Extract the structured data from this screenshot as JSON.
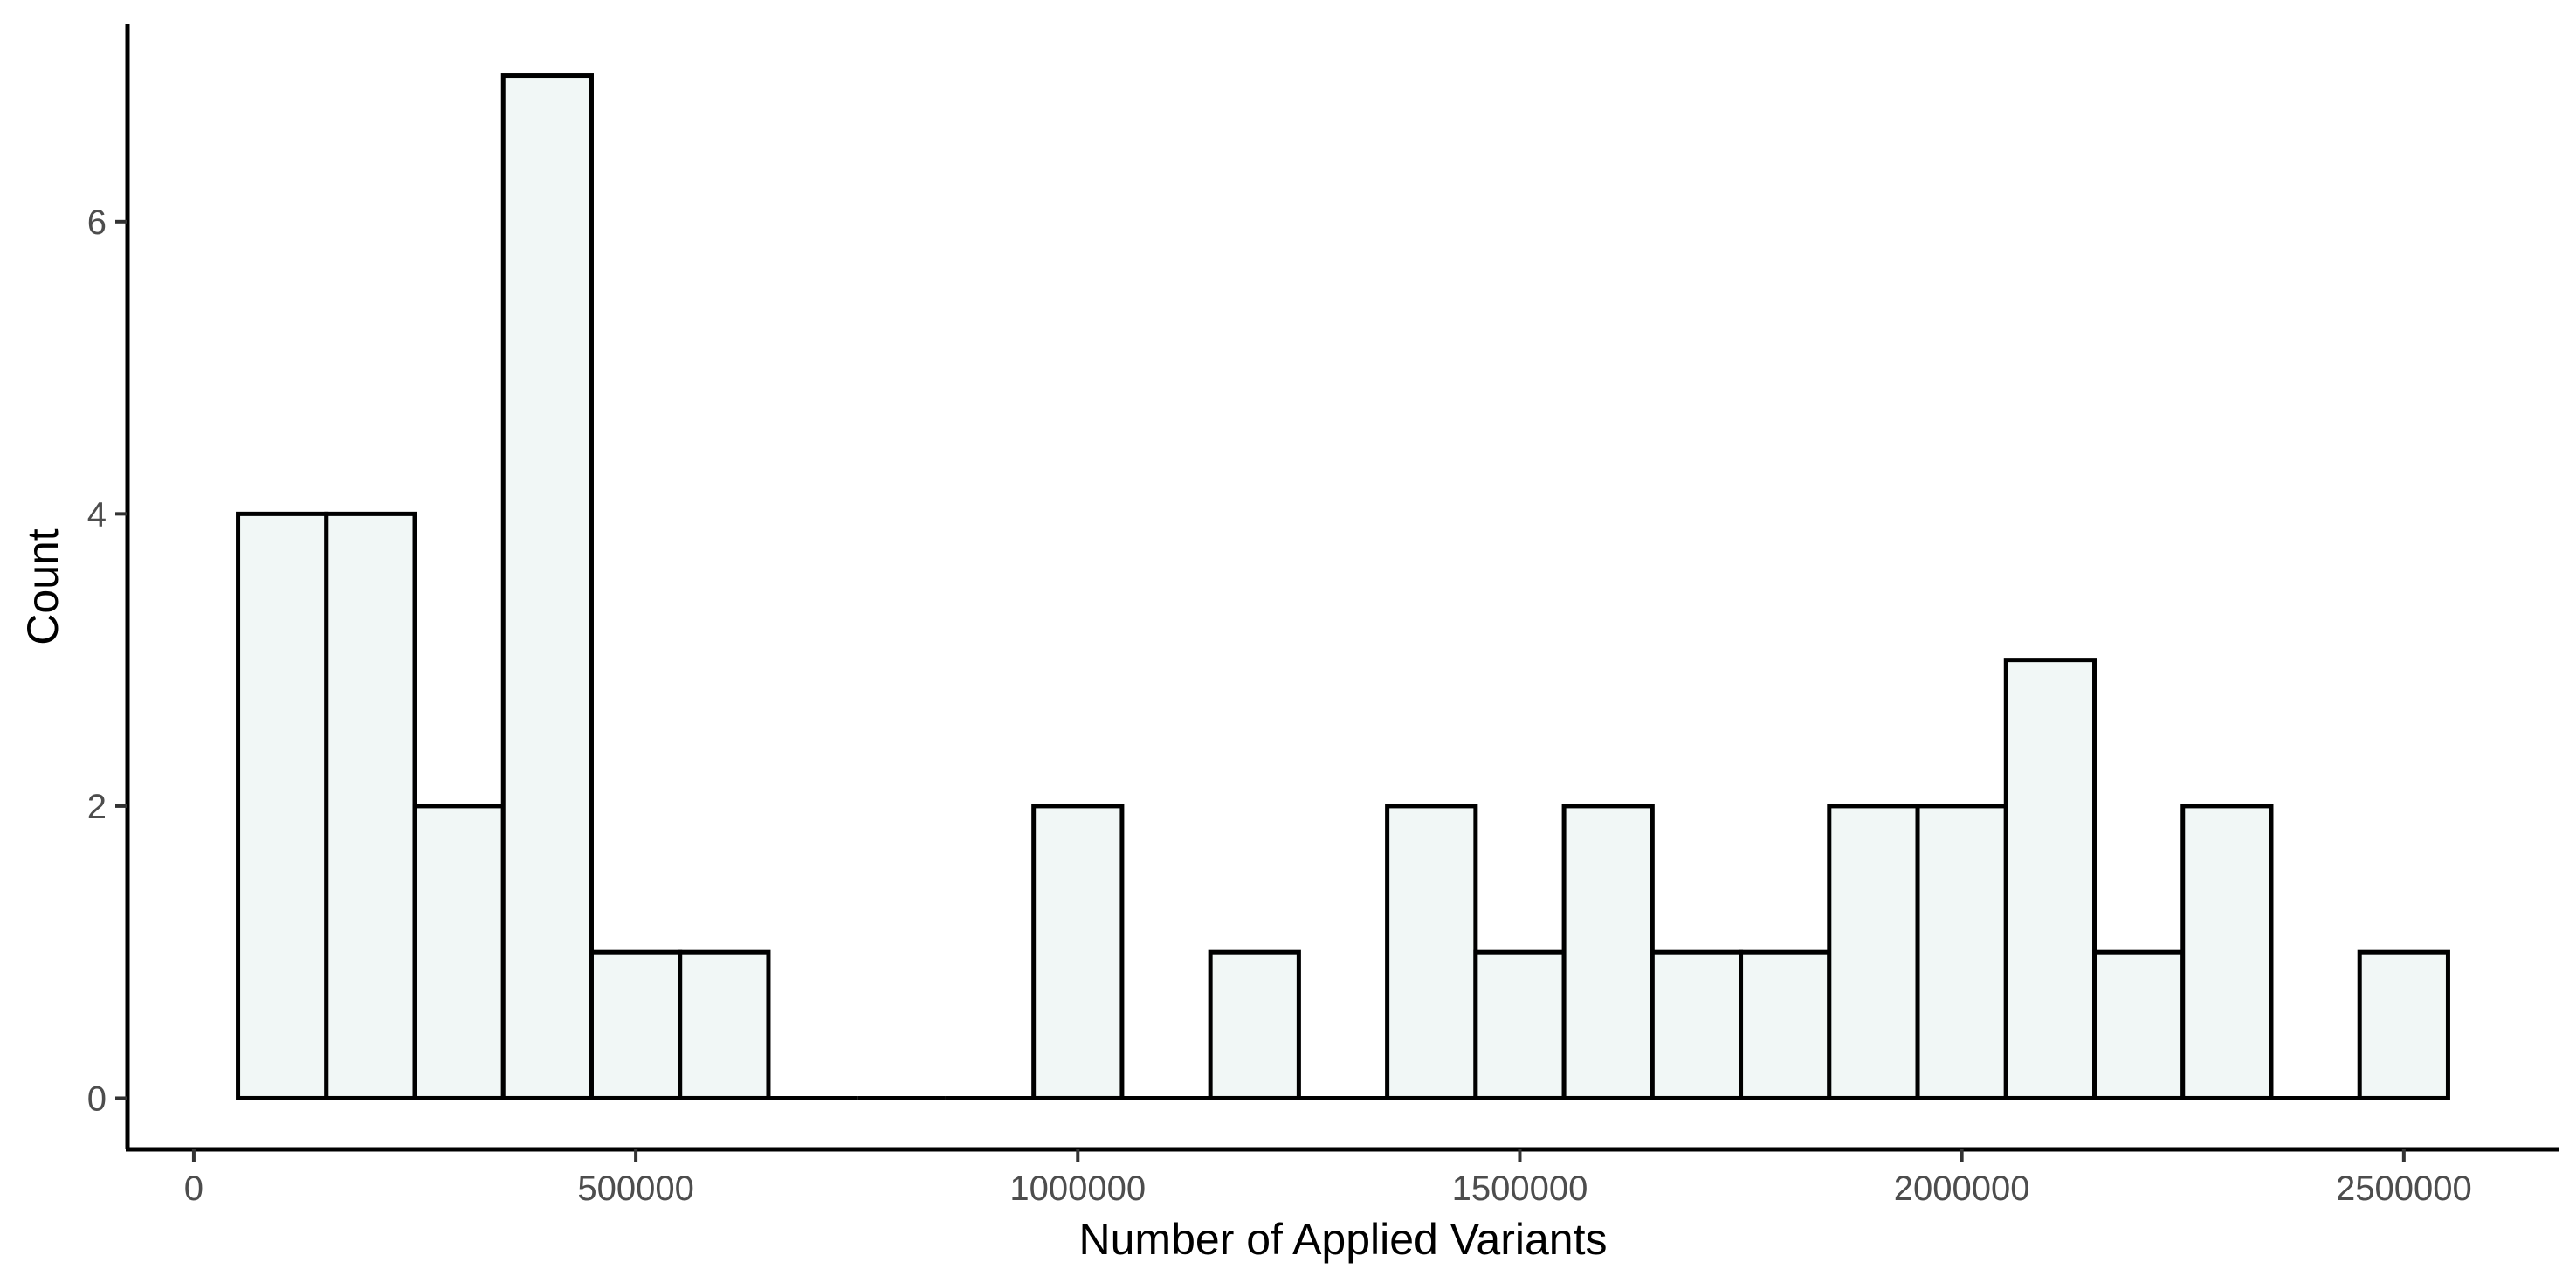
{
  "chart_data": {
    "type": "histogram",
    "title": "",
    "xlabel": "Number of Applied Variants",
    "ylabel": "Count",
    "xlim": [
      -75000,
      2675000
    ],
    "ylim": [
      -0.35,
      7.35
    ],
    "x_ticks": [
      0,
      500000,
      1000000,
      1500000,
      2000000,
      2500000
    ],
    "x_tick_labels": [
      "0",
      "500000",
      "1000000",
      "1500000",
      "2000000",
      "2500000"
    ],
    "y_ticks": [
      0,
      2,
      4,
      6
    ],
    "y_tick_labels": [
      "0",
      "2",
      "4",
      "6"
    ],
    "bin_width": 100000,
    "bins": [
      {
        "x_min": 50000,
        "x_max": 150000,
        "count": 4
      },
      {
        "x_min": 150000,
        "x_max": 250000,
        "count": 4
      },
      {
        "x_min": 250000,
        "x_max": 350000,
        "count": 2
      },
      {
        "x_min": 350000,
        "x_max": 450000,
        "count": 7
      },
      {
        "x_min": 450000,
        "x_max": 550000,
        "count": 1
      },
      {
        "x_min": 550000,
        "x_max": 650000,
        "count": 1
      },
      {
        "x_min": 650000,
        "x_max": 750000,
        "count": 0
      },
      {
        "x_min": 750000,
        "x_max": 850000,
        "count": 0
      },
      {
        "x_min": 850000,
        "x_max": 950000,
        "count": 0
      },
      {
        "x_min": 950000,
        "x_max": 1050000,
        "count": 2
      },
      {
        "x_min": 1050000,
        "x_max": 1150000,
        "count": 0
      },
      {
        "x_min": 1150000,
        "x_max": 1250000,
        "count": 1
      },
      {
        "x_min": 1250000,
        "x_max": 1350000,
        "count": 0
      },
      {
        "x_min": 1350000,
        "x_max": 1450000,
        "count": 2
      },
      {
        "x_min": 1450000,
        "x_max": 1550000,
        "count": 1
      },
      {
        "x_min": 1550000,
        "x_max": 1650000,
        "count": 2
      },
      {
        "x_min": 1650000,
        "x_max": 1750000,
        "count": 1
      },
      {
        "x_min": 1750000,
        "x_max": 1850000,
        "count": 1
      },
      {
        "x_min": 1850000,
        "x_max": 1950000,
        "count": 2
      },
      {
        "x_min": 1950000,
        "x_max": 2050000,
        "count": 2
      },
      {
        "x_min": 2050000,
        "x_max": 2150000,
        "count": 3
      },
      {
        "x_min": 2150000,
        "x_max": 2250000,
        "count": 1
      },
      {
        "x_min": 2250000,
        "x_max": 2350000,
        "count": 2
      },
      {
        "x_min": 2350000,
        "x_max": 2450000,
        "count": 0
      },
      {
        "x_min": 2450000,
        "x_max": 2550000,
        "count": 1
      }
    ],
    "colors": {
      "bar_fill": "#f1f7f6",
      "bar_stroke": "#000000",
      "axis": "#000000",
      "tick_label": "#4d4d4d",
      "background": "#ffffff"
    },
    "grid": false,
    "legend": "none"
  }
}
